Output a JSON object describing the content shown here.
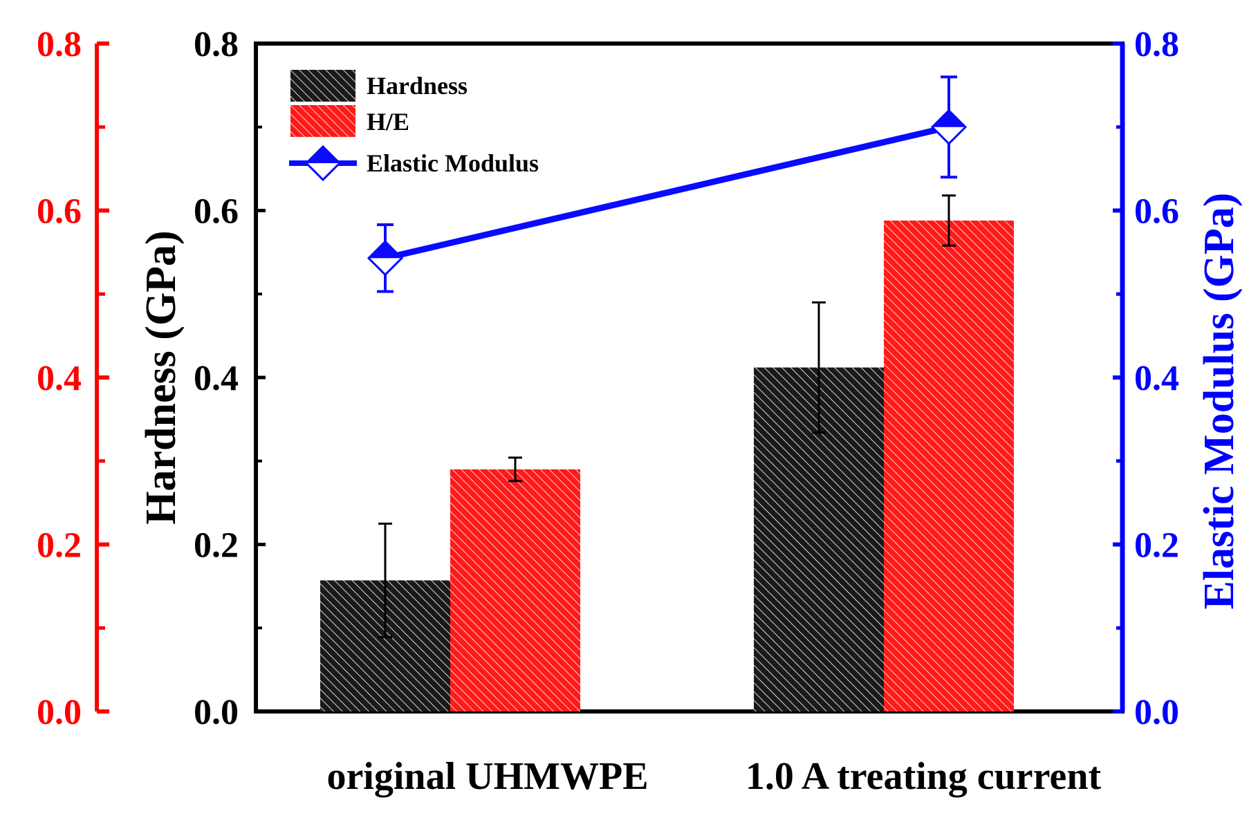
{
  "chart_data": {
    "type": "bar",
    "categories": [
      "original UHMWPE",
      "1.0 A treating current"
    ],
    "series": [
      {
        "name": "Hardness",
        "axis": "left",
        "type": "bar",
        "color": "#1a1a1a",
        "values": [
          0.157,
          0.412
        ],
        "errors": [
          0.068,
          0.078
        ]
      },
      {
        "name": "H/E",
        "axis": "left-outer",
        "type": "bar",
        "color": "#ff1a1a",
        "values": [
          0.29,
          0.588
        ],
        "errors": [
          0.014,
          0.03
        ]
      },
      {
        "name": "Elastic Modulus",
        "axis": "right",
        "type": "line",
        "color": "#0a0aff",
        "values": [
          0.543,
          0.7
        ],
        "errors": [
          0.04,
          0.06
        ]
      }
    ],
    "axes": {
      "left": {
        "title": "Hardness (GPa)",
        "ylim": [
          0,
          0.8
        ],
        "ticks": [
          "0.0",
          "0.2",
          "0.4",
          "0.6",
          "0.8"
        ],
        "color": "#000000"
      },
      "left_outer": {
        "title": "",
        "ylim": [
          0,
          0.8
        ],
        "ticks": [
          "0.0",
          "0.2",
          "0.4",
          "0.6",
          "0.8"
        ],
        "color": "#ff0000"
      },
      "right": {
        "title": "Elastic Modulus (GPa)",
        "ylim": [
          0,
          0.8
        ],
        "ticks": [
          "0.0",
          "0.2",
          "0.4",
          "0.6",
          "0.8"
        ],
        "color": "#0000ff"
      }
    },
    "legend": {
      "position": "top-left",
      "entries": [
        "Hardness",
        "H/E",
        "Elastic Modulus"
      ]
    },
    "xlabel": "",
    "grid": false
  }
}
